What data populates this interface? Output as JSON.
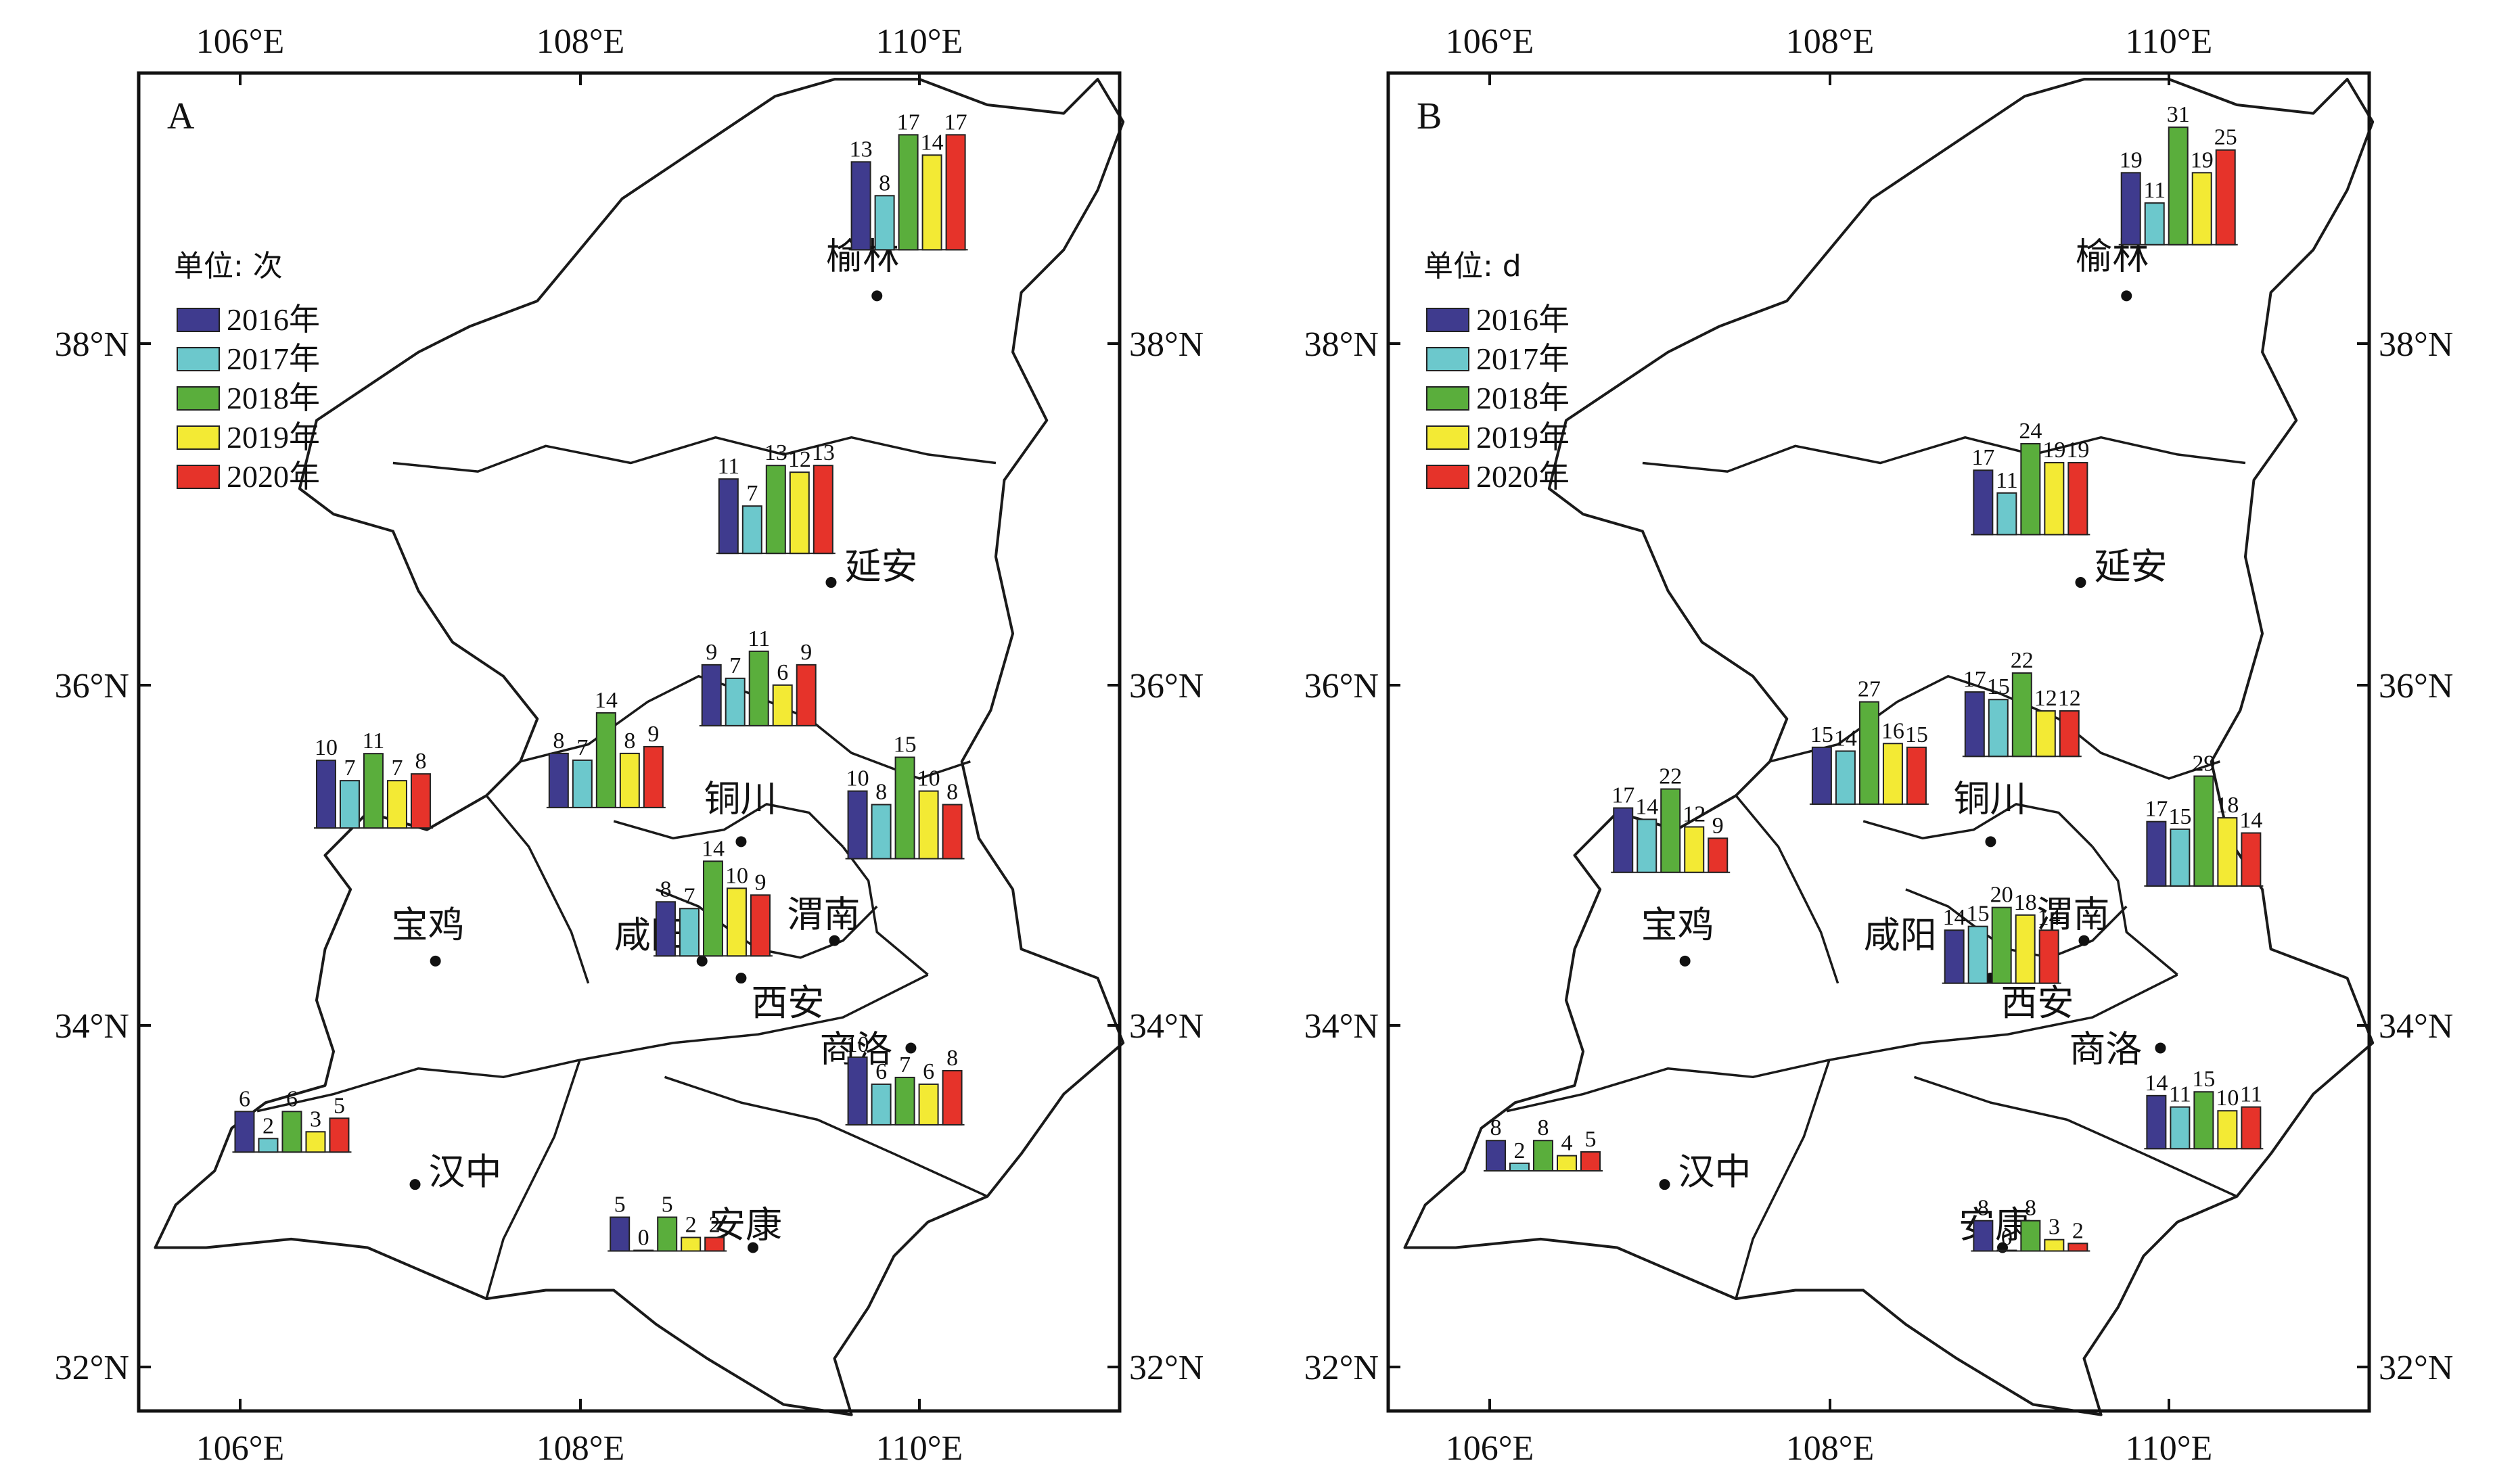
{
  "colors": {
    "y2016": "#3f3b8e",
    "y2017": "#6cc8cc",
    "y2018": "#5aae3c",
    "y2019": "#f3ea34",
    "y2020": "#e6332a",
    "outline": "#1a1a1a"
  },
  "axes": {
    "lon_ticks": [
      "106°E",
      "108°E",
      "110°E"
    ],
    "lat_ticks": [
      "38°N",
      "36°N",
      "34°N",
      "32°N"
    ]
  },
  "panels": [
    {
      "letter": "A",
      "legend_title": "单位: 次",
      "legend_items": [
        "2016年",
        "2017年",
        "2018年",
        "2019年",
        "2020年"
      ],
      "cities": [
        {
          "name": "榆林",
          "values": [
            13,
            8,
            17,
            14,
            17
          ]
        },
        {
          "name": "延安",
          "values": [
            11,
            7,
            13,
            12,
            13
          ]
        },
        {
          "name": "铜川",
          "values": [
            9,
            7,
            11,
            6,
            9
          ]
        },
        {
          "name": "咸阳",
          "values": [
            8,
            7,
            14,
            8,
            9
          ]
        },
        {
          "name": "宝鸡",
          "values": [
            10,
            7,
            11,
            7,
            8
          ]
        },
        {
          "name": "渭南",
          "values": [
            10,
            8,
            15,
            10,
            8
          ]
        },
        {
          "name": "西安",
          "values": [
            8,
            7,
            14,
            10,
            9
          ]
        },
        {
          "name": "商洛",
          "values": [
            10,
            6,
            7,
            6,
            8
          ]
        },
        {
          "name": "汉中",
          "values": [
            6,
            2,
            6,
            3,
            5
          ]
        },
        {
          "name": "安康",
          "values": [
            5,
            0,
            5,
            2,
            2
          ]
        }
      ]
    },
    {
      "letter": "B",
      "legend_title": "单位: d",
      "legend_items": [
        "2016年",
        "2017年",
        "2018年",
        "2019年",
        "2020年"
      ],
      "cities": [
        {
          "name": "榆林",
          "values": [
            19,
            11,
            31,
            19,
            25
          ]
        },
        {
          "name": "延安",
          "values": [
            17,
            11,
            24,
            19,
            19
          ]
        },
        {
          "name": "铜川",
          "values": [
            17,
            15,
            22,
            12,
            12
          ]
        },
        {
          "name": "咸阳",
          "values": [
            15,
            14,
            27,
            16,
            15
          ]
        },
        {
          "name": "宝鸡",
          "values": [
            17,
            14,
            22,
            12,
            9
          ]
        },
        {
          "name": "渭南",
          "values": [
            17,
            15,
            29,
            18,
            14
          ]
        },
        {
          "name": "西安",
          "values": [
            14,
            15,
            20,
            18,
            14
          ]
        },
        {
          "name": "商洛",
          "values": [
            14,
            11,
            15,
            10,
            11
          ]
        },
        {
          "name": "汉中",
          "values": [
            8,
            2,
            8,
            4,
            5
          ]
        },
        {
          "name": "安康",
          "values": [
            8,
            0,
            8,
            3,
            2
          ]
        }
      ]
    }
  ]
}
